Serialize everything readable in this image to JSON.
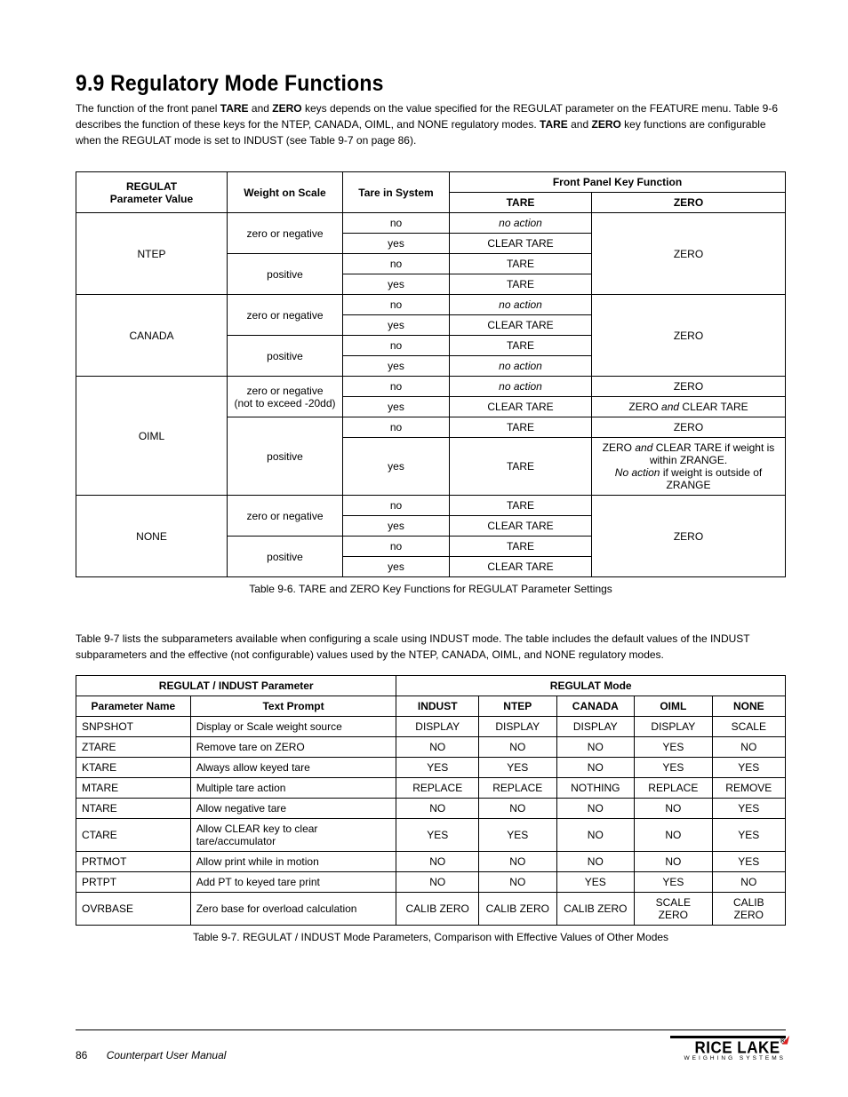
{
  "heading": "9.9    Regulatory Mode Functions",
  "intro_parts": [
    "The function of the front panel ",
    " and ",
    " keys depends on the value specified for the REGULAT parameter on the FEATURE menu. Table 9-6 describes the function of these keys for the NTEP, CANADA, OIML, and NONE regulatory modes. ",
    " and ",
    " key functions are configurable when the REGULAT mode is set to INDUST (see Table 9-7 on page 86)."
  ],
  "intro_bold": [
    "TARE",
    "ZERO",
    "TARE",
    "ZERO"
  ],
  "table1": {
    "header_group": "Front Panel Key Function",
    "headers": {
      "regulat1": "REGULAT",
      "regulat2": "Parameter Value",
      "weight": "Weight on Scale",
      "tis": "Tare in System",
      "tare": "TARE",
      "zero": "ZERO"
    },
    "rows": [
      {
        "pv": "NTEP",
        "w": "zero or negative",
        "t": "no",
        "a": "no action",
        "ai": true,
        "z": "ZERO",
        "pvspan": 4,
        "wspan": 2,
        "zspan": 4
      },
      {
        "t": "yes",
        "a": "CLEAR TARE"
      },
      {
        "w": "positive",
        "t": "no",
        "a": "TARE",
        "wspan": 2
      },
      {
        "t": "yes",
        "a": "TARE"
      },
      {
        "pv": "CANADA",
        "w": "zero or negative",
        "t": "no",
        "a": "no action",
        "ai": true,
        "z": "ZERO",
        "pvspan": 4,
        "wspan": 2,
        "zspan": 4
      },
      {
        "t": "yes",
        "a": "CLEAR TARE"
      },
      {
        "w": "positive",
        "t": "no",
        "a": "TARE",
        "wspan": 2
      },
      {
        "t": "yes",
        "a": "no action",
        "ai": true
      },
      {
        "pv": "OIML",
        "w": "zero or negative",
        "w2": "(not to exceed -20dd)",
        "t": "no",
        "a": "no action",
        "ai": true,
        "z": "ZERO",
        "pvspan": 4,
        "wspan": 2
      },
      {
        "t": "yes",
        "a": "CLEAR TARE",
        "z": "ZERO and CLEAR TARE",
        "zmix": true
      },
      {
        "w": "positive",
        "t": "no",
        "a": "TARE",
        "z": "ZERO",
        "wspan": 2
      },
      {
        "t": "yes",
        "a": "TARE",
        "z": "ZERO and CLEAR TARE if weight is within ZRANGE.\nNo action if weight is outside of ZRANGE",
        "zcomplex": true
      },
      {
        "pv": "NONE",
        "w": "zero or negative",
        "t": "no",
        "a": "TARE",
        "z": "ZERO",
        "pvspan": 4,
        "wspan": 2,
        "zspan": 4
      },
      {
        "t": "yes",
        "a": "CLEAR TARE"
      },
      {
        "w": "positive",
        "t": "no",
        "a": "TARE",
        "wspan": 2
      },
      {
        "t": "yes",
        "a": "CLEAR TARE"
      }
    ],
    "caption": "Table 9-6. TARE and ZERO Key Functions for REGULAT Parameter Settings"
  },
  "midtext": "Table 9-7 lists the subparameters available when configuring a scale using INDUST mode. The table includes the default values of the INDUST subparameters and the effective (not configurable) values used by the NTEP, CANADA, OIML, and NONE regulatory modes.",
  "table2": {
    "group1": "REGULAT / INDUST Parameter",
    "group2": "REGULAT Mode",
    "headers": [
      "Parameter Name",
      "Text Prompt",
      "INDUST",
      "NTEP",
      "CANADA",
      "OIML",
      "NONE"
    ],
    "rows": [
      [
        "SNPSHOT",
        "Display or Scale weight source",
        "DISPLAY",
        "DISPLAY",
        "DISPLAY",
        "DISPLAY",
        "SCALE"
      ],
      [
        "ZTARE",
        "Remove tare on ZERO",
        "NO",
        "NO",
        "NO",
        "YES",
        "NO"
      ],
      [
        "KTARE",
        "Always allow keyed tare",
        "YES",
        "YES",
        "NO",
        "YES",
        "YES"
      ],
      [
        "MTARE",
        "Multiple tare action",
        "REPLACE",
        "REPLACE",
        "NOTHING",
        "REPLACE",
        "REMOVE"
      ],
      [
        "NTARE",
        "Allow negative tare",
        "NO",
        "NO",
        "NO",
        "NO",
        "YES"
      ],
      [
        "CTARE",
        "Allow CLEAR key to clear tare/accumulator",
        "YES",
        "YES",
        "NO",
        "NO",
        "YES"
      ],
      [
        "PRTMOT",
        "Allow print while in motion",
        "NO",
        "NO",
        "NO",
        "NO",
        "YES"
      ],
      [
        "PRTPT",
        "Add PT to keyed tare print",
        "NO",
        "NO",
        "YES",
        "YES",
        "NO"
      ],
      [
        "OVRBASE",
        "Zero base for overload calculation",
        "CALIB ZERO",
        "CALIB ZERO",
        "CALIB ZERO",
        "SCALE ZERO",
        "CALIB ZERO"
      ]
    ],
    "caption": "Table 9-7. REGULAT / INDUST Mode Parameters, Comparison with Effective Values of Other Modes"
  },
  "footer": {
    "page": "86",
    "manual": "Counterpart User Manual",
    "logo_main": "RICE LAKE",
    "logo_sub": "WEIGHING SYSTEMS"
  }
}
